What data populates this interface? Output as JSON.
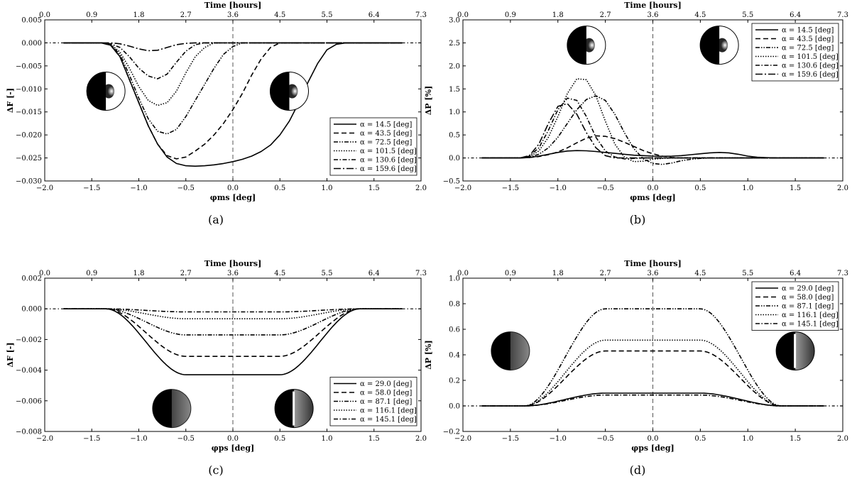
{
  "top_axis": {
    "label": "Time [hours]",
    "ticks": [
      "0.0",
      "0.9",
      "1.8",
      "2.7",
      "3.6",
      "4.5",
      "5.5",
      "6.4",
      "7.3"
    ]
  },
  "chart_data": [
    {
      "id": "a",
      "type": "line",
      "subplot_label": "(a)",
      "xlabel": "φms [deg]",
      "ylabel": "ΔF [-]",
      "xlim": [
        -2.0,
        2.0
      ],
      "ylim": [
        -0.03,
        0.005
      ],
      "x_ticks": [
        -2.0,
        -1.5,
        -1.0,
        -0.5,
        0.0,
        0.5,
        1.0,
        1.5,
        2.0
      ],
      "x_tick_labels": [
        "−2.0",
        "−1.5",
        "−1.0",
        "−0.5",
        "0.0",
        "0.5",
        "1.0",
        "1.5",
        "2.0"
      ],
      "y_ticks": [
        -0.03,
        -0.025,
        -0.02,
        -0.015,
        -0.01,
        -0.005,
        0.0,
        0.005
      ],
      "y_tick_labels": [
        "−0.030",
        "−0.025",
        "−0.020",
        "−0.015",
        "−0.010",
        "−0.005",
        "0.000",
        "0.005"
      ],
      "legend_position": "bottom-right",
      "x": [
        -1.8,
        -1.4,
        -1.3,
        -1.2,
        -1.1,
        -1.0,
        -0.9,
        -0.8,
        -0.7,
        -0.6,
        -0.5,
        -0.4,
        -0.3,
        -0.2,
        -0.1,
        0.0,
        0.1,
        0.2,
        0.3,
        0.4,
        0.5,
        0.6,
        0.7,
        0.8,
        0.9,
        1.0,
        1.1,
        1.2,
        1.3,
        1.4,
        1.8
      ],
      "series": [
        {
          "name": "α = 14.5   [deg]",
          "dash": "solid",
          "values": [
            0,
            0,
            -0.0005,
            -0.003,
            -0.008,
            -0.013,
            -0.018,
            -0.022,
            -0.0248,
            -0.0262,
            -0.0267,
            -0.0268,
            -0.0267,
            -0.0265,
            -0.0262,
            -0.0258,
            -0.0253,
            -0.0246,
            -0.0236,
            -0.0222,
            -0.02,
            -0.017,
            -0.013,
            -0.0085,
            -0.0045,
            -0.0015,
            -0.0003,
            0,
            0,
            0,
            0
          ]
        },
        {
          "name": "α = 43.5   [deg]",
          "dash": "dashed",
          "values": [
            0,
            0,
            -0.0005,
            -0.003,
            -0.008,
            -0.013,
            -0.018,
            -0.022,
            -0.0245,
            -0.0252,
            -0.0248,
            -0.0235,
            -0.022,
            -0.02,
            -0.0175,
            -0.0145,
            -0.011,
            -0.007,
            -0.0035,
            -0.001,
            0,
            0,
            0,
            0,
            0,
            0,
            0,
            0,
            0,
            0,
            0
          ]
        },
        {
          "name": "α = 72.5   [deg]",
          "dash": "dashdotdot",
          "values": [
            0,
            0,
            -0.0004,
            -0.0025,
            -0.007,
            -0.012,
            -0.0165,
            -0.0192,
            -0.0198,
            -0.0188,
            -0.016,
            -0.0125,
            -0.009,
            -0.0055,
            -0.0025,
            -0.0008,
            0,
            0,
            0,
            0,
            0,
            0,
            0,
            0,
            0,
            0,
            0,
            0,
            0,
            0,
            0
          ]
        },
        {
          "name": "α = 101.5 [deg]",
          "dash": "dotted",
          "values": [
            0,
            0,
            -0.0003,
            -0.002,
            -0.0055,
            -0.0095,
            -0.0125,
            -0.0136,
            -0.013,
            -0.0105,
            -0.0065,
            -0.003,
            -0.001,
            0,
            0,
            0,
            0,
            0,
            0,
            0,
            0,
            0,
            0,
            0,
            0,
            0,
            0,
            0,
            0,
            0,
            0
          ]
        },
        {
          "name": "α = 130.6 [deg]",
          "dash": "dashdot",
          "values": [
            0,
            0,
            -0.0002,
            -0.001,
            -0.003,
            -0.0055,
            -0.0072,
            -0.0078,
            -0.0068,
            -0.0042,
            -0.0018,
            -0.0004,
            0,
            0,
            0,
            0,
            0,
            0,
            0,
            0,
            0,
            0,
            0,
            0,
            0,
            0,
            0,
            0,
            0,
            0,
            0
          ]
        },
        {
          "name": "α = 159.6 [deg]",
          "dash": "longdashdot",
          "values": [
            0,
            0,
            0,
            -0.0002,
            -0.0007,
            -0.0013,
            -0.0017,
            -0.0016,
            -0.001,
            -0.0004,
            -0.0001,
            0,
            0,
            0,
            0,
            0,
            0,
            0,
            0,
            0,
            0,
            0,
            0,
            0,
            0,
            0,
            0,
            0,
            0,
            0,
            0
          ]
        }
      ],
      "moons": [
        {
          "x": -1.35,
          "y": -0.0105,
          "kind": "dark-left"
        },
        {
          "x": 0.6,
          "y": -0.0105,
          "kind": "dark-left-glow"
        }
      ]
    },
    {
      "id": "b",
      "type": "line",
      "subplot_label": "(b)",
      "xlabel": "φms [deg]",
      "ylabel": "ΔP [%]",
      "xlim": [
        -2.0,
        2.0
      ],
      "ylim": [
        -0.5,
        3.0
      ],
      "x_ticks": [
        -2.0,
        -1.5,
        -1.0,
        -0.5,
        0.0,
        0.5,
        1.0,
        1.5,
        2.0
      ],
      "x_tick_labels": [
        "−2.0",
        "−1.5",
        "−1.0",
        "−0.5",
        "0.0",
        "0.5",
        "1.0",
        "1.5",
        "2.0"
      ],
      "y_ticks": [
        -0.5,
        0.0,
        0.5,
        1.0,
        1.5,
        2.0,
        2.5,
        3.0
      ],
      "y_tick_labels": [
        "−0.5",
        "0.0",
        "0.5",
        "1.0",
        "1.5",
        "2.0",
        "2.5",
        "3.0"
      ],
      "legend_position": "top-right",
      "x": [
        -1.8,
        -1.4,
        -1.3,
        -1.2,
        -1.1,
        -1.0,
        -0.9,
        -0.8,
        -0.7,
        -0.6,
        -0.5,
        -0.4,
        -0.3,
        -0.2,
        -0.1,
        0.0,
        0.1,
        0.2,
        0.3,
        0.4,
        0.5,
        0.6,
        0.7,
        0.8,
        0.9,
        1.0,
        1.1,
        1.2,
        1.3,
        1.4,
        1.8
      ],
      "series": [
        {
          "name": "α = 14.5   [deg]",
          "dash": "solid",
          "values": [
            0,
            0,
            0.01,
            0.04,
            0.08,
            0.12,
            0.15,
            0.16,
            0.155,
            0.14,
            0.12,
            0.1,
            0.08,
            0.06,
            0.05,
            0.04,
            0.035,
            0.04,
            0.05,
            0.07,
            0.09,
            0.11,
            0.12,
            0.11,
            0.08,
            0.04,
            0.015,
            0.005,
            0,
            0,
            0
          ]
        },
        {
          "name": "α = 43.5   [deg]",
          "dash": "dashed",
          "values": [
            0,
            0,
            0.01,
            0.03,
            0.07,
            0.13,
            0.22,
            0.33,
            0.43,
            0.48,
            0.47,
            0.42,
            0.34,
            0.25,
            0.16,
            0.09,
            0.04,
            0.01,
            0,
            0,
            0,
            0,
            0,
            0,
            0,
            0,
            0,
            0,
            0,
            0,
            0
          ]
        },
        {
          "name": "α = 72.5   [deg]",
          "dash": "dashdotdot",
          "values": [
            0,
            0,
            0.02,
            0.08,
            0.22,
            0.45,
            0.75,
            1.05,
            1.27,
            1.35,
            1.25,
            0.95,
            0.55,
            0.2,
            -0.02,
            -0.12,
            -0.14,
            -0.11,
            -0.06,
            -0.03,
            -0.01,
            0,
            0,
            0,
            0,
            0,
            0,
            0,
            0,
            0,
            0
          ]
        },
        {
          "name": "α = 101.5 [deg]",
          "dash": "dotted",
          "values": [
            0,
            0,
            0.03,
            0.15,
            0.45,
            0.9,
            1.4,
            1.72,
            1.7,
            1.35,
            0.8,
            0.3,
            0.02,
            -0.08,
            -0.07,
            -0.03,
            -0.01,
            0,
            0,
            0,
            0,
            0,
            0,
            0,
            0,
            0,
            0,
            0,
            0,
            0,
            0
          ]
        },
        {
          "name": "α = 130.6 [deg]",
          "dash": "dashdot",
          "values": [
            0,
            0,
            0.04,
            0.22,
            0.6,
            1.05,
            1.3,
            1.25,
            0.9,
            0.45,
            0.15,
            0.02,
            -0.02,
            -0.01,
            0,
            0,
            0,
            0,
            0,
            0,
            0,
            0,
            0,
            0,
            0,
            0,
            0,
            0,
            0,
            0,
            0
          ]
        },
        {
          "name": "α = 159.6 [deg]",
          "dash": "longdashdot",
          "values": [
            0,
            0,
            0.05,
            0.3,
            0.75,
            1.12,
            1.18,
            0.95,
            0.55,
            0.22,
            0.05,
            0,
            0,
            0,
            0,
            0,
            0,
            0,
            0,
            0,
            0,
            0,
            0,
            0,
            0,
            0,
            0,
            0,
            0,
            0,
            0
          ]
        }
      ],
      "moons": [
        {
          "x": -0.7,
          "y": 2.45,
          "kind": "dark-left-glow"
        },
        {
          "x": 0.7,
          "y": 2.45,
          "kind": "dark-left-glow"
        }
      ]
    },
    {
      "id": "c",
      "type": "line",
      "subplot_label": "(c)",
      "xlabel": "φps [deg]",
      "ylabel": "ΔF [-]",
      "xlim": [
        -2.0,
        2.0
      ],
      "ylim": [
        -0.008,
        0.002
      ],
      "x_ticks": [
        -2.0,
        -1.5,
        -1.0,
        -0.5,
        0.0,
        0.5,
        1.0,
        1.5,
        2.0
      ],
      "x_tick_labels": [
        "−2.0",
        "−1.5",
        "−1.0",
        "−0.5",
        "0.0",
        "0.5",
        "1.0",
        "1.5",
        "2.0"
      ],
      "y_ticks": [
        -0.008,
        -0.006,
        -0.004,
        -0.002,
        0.0,
        0.002
      ],
      "y_tick_labels": [
        "−0.008",
        "−0.006",
        "−0.004",
        "−0.002",
        "0.000",
        "0.002"
      ],
      "legend_position": "bottom-right",
      "shape": "flat-transit",
      "series": [
        {
          "name": "α = 29.0   [deg]",
          "dash": "solid",
          "depth": -0.0043
        },
        {
          "name": "α = 58.0   [deg]",
          "dash": "dashed",
          "depth": -0.0031
        },
        {
          "name": "α = 87.1   [deg]",
          "dash": "dashdotdot",
          "depth": -0.0017
        },
        {
          "name": "α = 116.1 [deg]",
          "dash": "dotted",
          "depth": -0.00065
        },
        {
          "name": "α = 145.1 [deg]",
          "dash": "dashdot",
          "depth": -0.0002
        }
      ],
      "moons": [
        {
          "x": -0.65,
          "y": -0.0065,
          "kind": "dark-left-grad"
        },
        {
          "x": 0.65,
          "y": -0.0065,
          "kind": "dark-left-white"
        }
      ]
    },
    {
      "id": "d",
      "type": "line",
      "subplot_label": "(d)",
      "xlabel": "φps [deg]",
      "ylabel": "ΔP [%]",
      "xlim": [
        -2.0,
        2.0
      ],
      "ylim": [
        -0.2,
        1.0
      ],
      "x_ticks": [
        -2.0,
        -1.5,
        -1.0,
        -0.5,
        0.0,
        0.5,
        1.0,
        1.5,
        2.0
      ],
      "x_tick_labels": [
        "−2.0",
        "−1.5",
        "−1.0",
        "−0.5",
        "0.0",
        "0.5",
        "1.0",
        "1.5",
        "2.0"
      ],
      "y_ticks": [
        -0.2,
        0.0,
        0.2,
        0.4,
        0.6,
        0.8,
        1.0
      ],
      "y_tick_labels": [
        "−0.2",
        "0.0",
        "0.2",
        "0.4",
        "0.6",
        "0.8",
        "1.0"
      ],
      "legend_position": "top-right",
      "shape": "flat-transit",
      "series": [
        {
          "name": "α = 29.0   [deg]",
          "dash": "solid",
          "depth": 0.1
        },
        {
          "name": "α = 58.0   [deg]",
          "dash": "dashed",
          "depth": 0.43
        },
        {
          "name": "α = 87.1   [deg]",
          "dash": "dashdotdot",
          "depth": 0.76
        },
        {
          "name": "α = 116.1 [deg]",
          "dash": "dotted",
          "depth": 0.515
        },
        {
          "name": "α = 145.1 [deg]",
          "dash": "dashdot",
          "depth": 0.085
        }
      ],
      "moons": [
        {
          "x": -1.5,
          "y": 0.43,
          "kind": "dark-left-grad"
        },
        {
          "x": 1.5,
          "y": 0.43,
          "kind": "dark-left-white"
        }
      ]
    }
  ]
}
